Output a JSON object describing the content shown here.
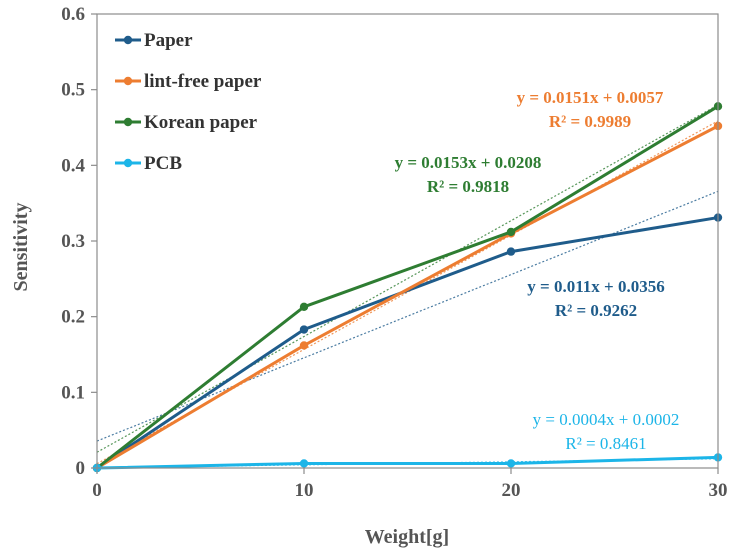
{
  "chart_data": {
    "type": "line",
    "xlabel": "Weight[g]",
    "ylabel": "Sensitivity",
    "x": [
      0,
      10,
      20,
      30
    ],
    "xlim": [
      0,
      30
    ],
    "ylim": [
      0,
      0.6
    ],
    "x_ticks": [
      "0",
      "10",
      "20",
      "30"
    ],
    "y_ticks": [
      "0",
      "0.1",
      "0.2",
      "0.3",
      "0.4",
      "0.5",
      "0.6"
    ],
    "grid": false,
    "legend_position": "top-left",
    "series": [
      {
        "name": "Paper",
        "color": "#1F5C8B",
        "values": [
          0,
          0.183,
          0.286,
          0.331
        ],
        "trendline": {
          "slope": 0.011,
          "intercept": 0.0356
        },
        "equation": "y = 0.011x + 0.0356",
        "r2": "R² = 0.9262"
      },
      {
        "name": "lint-free paper",
        "color": "#ED7D31",
        "values": [
          0,
          0.162,
          0.31,
          0.452
        ],
        "trendline": {
          "slope": 0.0151,
          "intercept": 0.0057
        },
        "equation": "y = 0.0151x + 0.0057",
        "r2": "R² = 0.9989"
      },
      {
        "name": "Korean paper",
        "color": "#2E7D32",
        "values": [
          0,
          0.213,
          0.312,
          0.478
        ],
        "trendline": {
          "slope": 0.0153,
          "intercept": 0.0208
        },
        "equation": "y = 0.0153x + 0.0208",
        "r2": "R² = 0.9818"
      },
      {
        "name": "PCB",
        "color": "#1CB5E8",
        "values": [
          0,
          0.006,
          0.006,
          0.014
        ],
        "trendline": {
          "slope": 0.0004,
          "intercept": 0.0002
        },
        "equation": "y = 0.0004x + 0.0002",
        "r2": "R² = 0.8461"
      }
    ]
  }
}
